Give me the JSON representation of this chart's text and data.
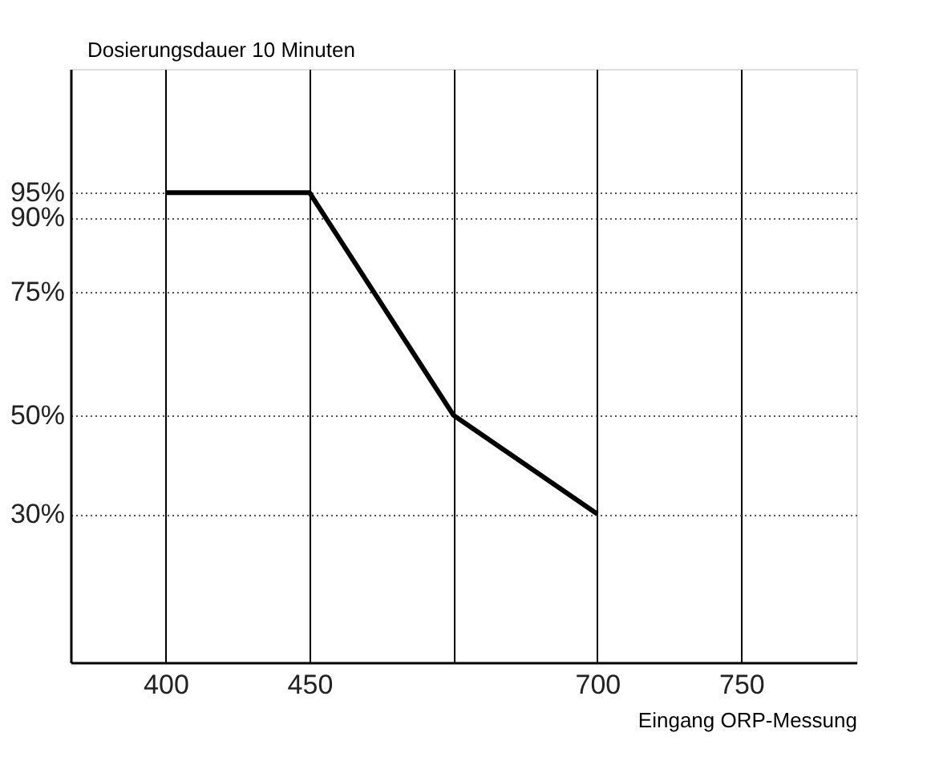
{
  "chart_data": {
    "type": "line",
    "xlabel": "Eingang ORP-Messung",
    "ylabel": "Dosierungsdauer 10 Minuten",
    "categories": [
      "400",
      "450",
      null,
      "700",
      "750"
    ],
    "series": [
      {
        "color": "#000000",
        "values": [
          95,
          95,
          50,
          30,
          null
        ]
      }
    ],
    "ylim": [
      0,
      120
    ],
    "yticks": [
      {
        "value": 30,
        "label": "30%"
      },
      {
        "value": 50,
        "label": "50%"
      },
      {
        "value": 75,
        "label": "75%"
      },
      {
        "value": 90,
        "label": "90%"
      },
      {
        "value": 95,
        "label": "95%"
      }
    ],
    "grid": true,
    "marker": "none",
    "line_style": "solid"
  }
}
